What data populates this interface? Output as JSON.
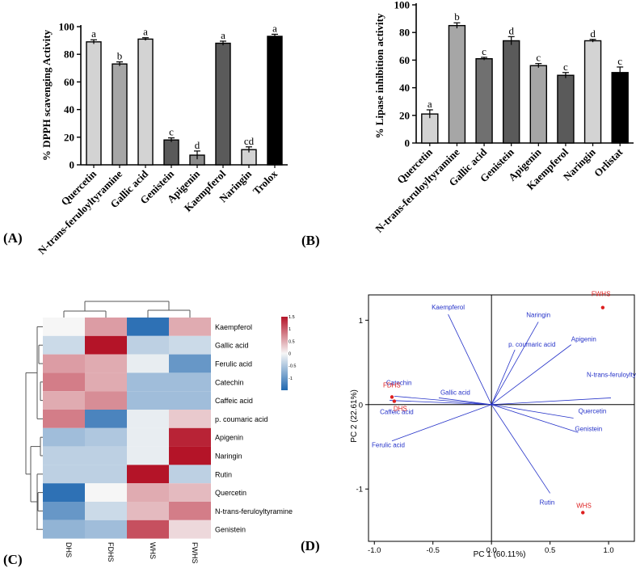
{
  "chart_data": [
    {
      "type": "bar",
      "panel": "(A)",
      "ylabel": "% DPPH scavenging Activity",
      "ylim": [
        0,
        100
      ],
      "yticks": [
        0,
        20,
        40,
        60,
        80,
        100
      ],
      "categories": [
        "Quercetin",
        "N-trans-feruloyltyramine",
        "Gallic acid",
        "Genistein",
        "Apigenin",
        "Kaempferol",
        "Naringin",
        "Trolox"
      ],
      "values": [
        89,
        73,
        91,
        18,
        7,
        88,
        11,
        93
      ],
      "errors": [
        1.5,
        1.5,
        1,
        1.5,
        3,
        1.5,
        2,
        1.5
      ],
      "letters": [
        "a",
        "b",
        "a",
        "c",
        "d",
        "a",
        "cd",
        "a"
      ],
      "colors": [
        "#d3d3d3",
        "#a6a6a6",
        "#d3d3d3",
        "#5a5a5a",
        "#8c8c8c",
        "#5a5a5a",
        "#d3d3d3",
        "#000000"
      ]
    },
    {
      "type": "bar",
      "panel": "(B)",
      "ylabel": "% Lipase inhibition activity",
      "ylim": [
        0,
        100
      ],
      "yticks": [
        0,
        20,
        40,
        60,
        80,
        100
      ],
      "categories": [
        "Quercetin",
        "N-trans-feruloyltyramine",
        "Gallic acid",
        "Genistein",
        "Apigenin",
        "Kaempferol",
        "Naringin",
        "Orlistat"
      ],
      "values": [
        21,
        85,
        61,
        74,
        56,
        49,
        74,
        51
      ],
      "errors": [
        3,
        2,
        1,
        3,
        1.5,
        2,
        1,
        4
      ],
      "letters": [
        "a",
        "b",
        "c",
        "d",
        "c",
        "c",
        "d",
        "c"
      ],
      "colors": [
        "#d3d3d3",
        "#a6a6a6",
        "#707070",
        "#5a5a5a",
        "#a6a6a6",
        "#5a5a5a",
        "#d3d3d3",
        "#000000"
      ]
    },
    {
      "type": "heatmap",
      "panel": "(C)",
      "columns": [
        "DHS",
        "FDHS",
        "WHS",
        "FWHS"
      ],
      "rows": [
        "Kaempferol",
        "Gallic acid",
        "Ferulic acid",
        "Catechin",
        "Caffeic acid",
        "p. coumaric acid",
        "Apigenin",
        "Naringin",
        "Rutin",
        "Quercetin",
        "N-trans-feruloyltyramine",
        "Genistein"
      ],
      "values": [
        [
          0.0,
          0.6,
          -1.4,
          0.5
        ],
        [
          -0.3,
          1.5,
          -0.4,
          -0.3
        ],
        [
          0.6,
          0.5,
          -0.1,
          -1.0
        ],
        [
          0.8,
          0.5,
          -0.6,
          -0.6
        ],
        [
          0.5,
          0.7,
          -0.6,
          -0.6
        ],
        [
          0.8,
          -1.2,
          -0.1,
          0.3
        ],
        [
          -0.6,
          -0.5,
          -0.1,
          1.4
        ],
        [
          -0.4,
          -0.4,
          -0.1,
          1.5
        ],
        [
          -0.4,
          -0.4,
          1.5,
          -0.4
        ],
        [
          -1.4,
          0.0,
          0.5,
          0.4
        ],
        [
          -1.0,
          -0.3,
          0.4,
          0.8
        ],
        [
          -0.7,
          -0.6,
          1.1,
          0.2
        ]
      ],
      "legend_ticks": [
        1.5,
        1,
        0.5,
        0,
        -0.5,
        -1
      ],
      "legend_range": [
        -1.5,
        1.5
      ]
    },
    {
      "type": "scatter",
      "panel": "(D)",
      "xlabel": "PC 1 (60.11%)",
      "ylabel": "PC 2 (22.61%)",
      "xlim": [
        -1.05,
        1.22
      ],
      "ylim": [
        -1.62,
        1.3
      ],
      "xticks": [
        -1.0,
        -0.5,
        0.0,
        0.5,
        1.0
      ],
      "xtick_labels": [
        "-1.0",
        "-0.5",
        "0.0",
        "0.5",
        "1.0"
      ],
      "yticks": [
        -1,
        0,
        1
      ],
      "ytick_labels": [
        "-1",
        "0",
        "1"
      ],
      "samples": [
        {
          "name": "FWHS",
          "x": 0.95,
          "y": 1.15
        },
        {
          "name": "FDHS",
          "x": -0.85,
          "y": 0.09
        },
        {
          "name": "DHS",
          "x": -0.83,
          "y": 0.04
        },
        {
          "name": "WHS",
          "x": 0.78,
          "y": -1.28
        }
      ],
      "loadings": [
        {
          "name": "Kaempferol",
          "x": -0.37,
          "y": 1.07
        },
        {
          "name": "Naringin",
          "x": 0.4,
          "y": 0.98
        },
        {
          "name": "p. coumaric acid",
          "x": 0.2,
          "y": 0.65
        },
        {
          "name": "Apigenin",
          "x": 0.68,
          "y": 0.71
        },
        {
          "name": "Catechin",
          "x": -0.83,
          "y": 0.1
        },
        {
          "name": "Gallic acid",
          "x": -0.45,
          "y": 0.08
        },
        {
          "name": "N-trans-feruloyltyramine",
          "x": 1.02,
          "y": 0.08
        },
        {
          "name": "Caffeic acid",
          "x": -0.87,
          "y": 0.05
        },
        {
          "name": "Quercetin",
          "x": 0.7,
          "y": -0.16
        },
        {
          "name": "Ferulic acid",
          "x": -0.85,
          "y": -0.43
        },
        {
          "name": "Genistein",
          "x": 0.74,
          "y": -0.33
        },
        {
          "name": "Rutin",
          "x": 0.5,
          "y": -1.05
        }
      ],
      "sample_color": "#dd1f1f",
      "loading_color": "#2633c9"
    }
  ]
}
